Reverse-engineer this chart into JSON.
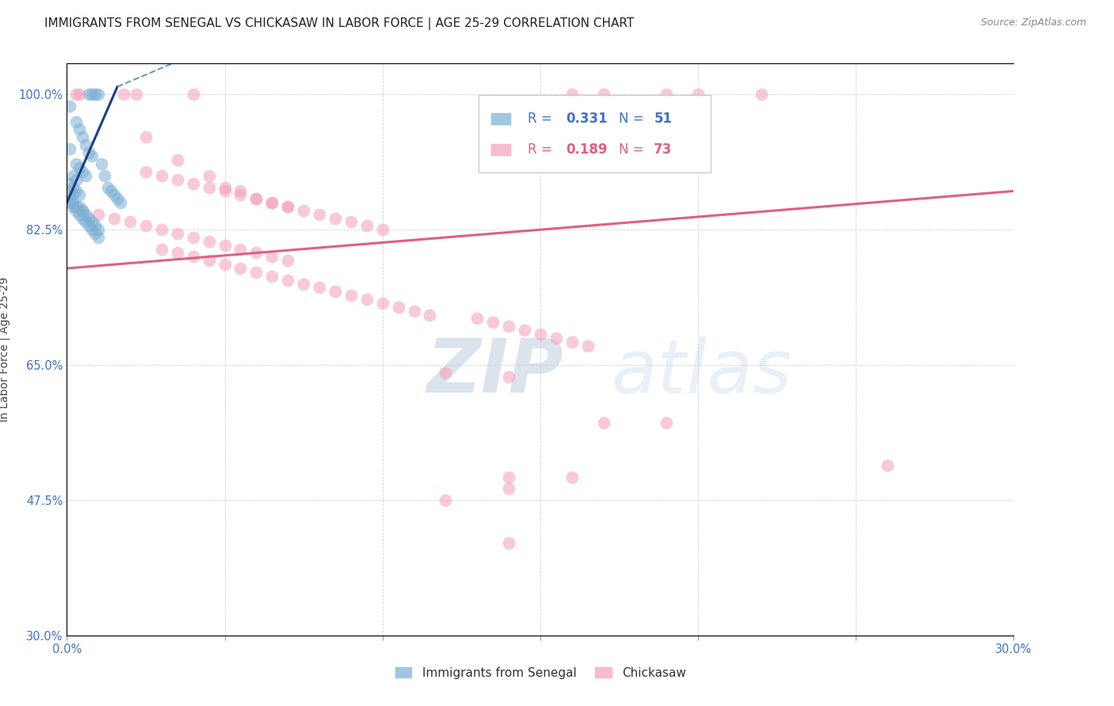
{
  "title": "IMMIGRANTS FROM SENEGAL VS CHICKASAW IN LABOR FORCE | AGE 25-29 CORRELATION CHART",
  "source": "Source: ZipAtlas.com",
  "ylabel": "In Labor Force | Age 25-29",
  "xlim": [
    0.0,
    0.3
  ],
  "ylim": [
    0.3,
    1.04
  ],
  "yticks": [
    0.3,
    0.475,
    0.65,
    0.825,
    1.0
  ],
  "ytick_labels": [
    "30.0%",
    "47.5%",
    "65.0%",
    "82.5%",
    "100.0%"
  ],
  "xticks": [
    0.0,
    0.05,
    0.1,
    0.15,
    0.2,
    0.25,
    0.3
  ],
  "xtick_labels": [
    "0.0%",
    "",
    "",
    "",
    "",
    "",
    "30.0%"
  ],
  "watermark_zip": "ZIP",
  "watermark_atlas": "atlas",
  "senegal_scatter": [
    [
      0.001,
      0.93
    ],
    [
      0.001,
      0.985
    ],
    [
      0.007,
      1.0
    ],
    [
      0.008,
      1.0
    ],
    [
      0.009,
      1.0
    ],
    [
      0.01,
      1.0
    ],
    [
      0.003,
      0.965
    ],
    [
      0.004,
      0.955
    ],
    [
      0.005,
      0.945
    ],
    [
      0.006,
      0.935
    ],
    [
      0.007,
      0.925
    ],
    [
      0.008,
      0.92
    ],
    [
      0.003,
      0.91
    ],
    [
      0.004,
      0.905
    ],
    [
      0.005,
      0.9
    ],
    [
      0.006,
      0.895
    ],
    [
      0.002,
      0.895
    ],
    [
      0.003,
      0.89
    ],
    [
      0.001,
      0.885
    ],
    [
      0.002,
      0.88
    ],
    [
      0.001,
      0.875
    ],
    [
      0.002,
      0.87
    ],
    [
      0.003,
      0.875
    ],
    [
      0.004,
      0.87
    ],
    [
      0.001,
      0.865
    ],
    [
      0.002,
      0.86
    ],
    [
      0.003,
      0.855
    ],
    [
      0.004,
      0.855
    ],
    [
      0.005,
      0.85
    ],
    [
      0.006,
      0.845
    ],
    [
      0.007,
      0.84
    ],
    [
      0.008,
      0.835
    ],
    [
      0.009,
      0.83
    ],
    [
      0.01,
      0.825
    ],
    [
      0.001,
      0.86
    ],
    [
      0.002,
      0.855
    ],
    [
      0.003,
      0.85
    ],
    [
      0.004,
      0.845
    ],
    [
      0.005,
      0.84
    ],
    [
      0.006,
      0.835
    ],
    [
      0.007,
      0.83
    ],
    [
      0.008,
      0.825
    ],
    [
      0.009,
      0.82
    ],
    [
      0.01,
      0.815
    ],
    [
      0.011,
      0.91
    ],
    [
      0.012,
      0.895
    ],
    [
      0.013,
      0.88
    ],
    [
      0.014,
      0.875
    ],
    [
      0.015,
      0.87
    ],
    [
      0.016,
      0.865
    ],
    [
      0.017,
      0.86
    ]
  ],
  "chickasaw_scatter": [
    [
      0.003,
      1.0
    ],
    [
      0.004,
      1.0
    ],
    [
      0.018,
      1.0
    ],
    [
      0.022,
      1.0
    ],
    [
      0.04,
      1.0
    ],
    [
      0.16,
      1.0
    ],
    [
      0.17,
      1.0
    ],
    [
      0.19,
      1.0
    ],
    [
      0.2,
      1.0
    ],
    [
      0.22,
      1.0
    ],
    [
      0.025,
      0.945
    ],
    [
      0.035,
      0.915
    ],
    [
      0.045,
      0.895
    ],
    [
      0.05,
      0.88
    ],
    [
      0.055,
      0.875
    ],
    [
      0.06,
      0.865
    ],
    [
      0.065,
      0.86
    ],
    [
      0.07,
      0.855
    ],
    [
      0.025,
      0.9
    ],
    [
      0.03,
      0.895
    ],
    [
      0.035,
      0.89
    ],
    [
      0.04,
      0.885
    ],
    [
      0.045,
      0.88
    ],
    [
      0.05,
      0.875
    ],
    [
      0.055,
      0.87
    ],
    [
      0.06,
      0.865
    ],
    [
      0.065,
      0.86
    ],
    [
      0.07,
      0.855
    ],
    [
      0.075,
      0.85
    ],
    [
      0.08,
      0.845
    ],
    [
      0.085,
      0.84
    ],
    [
      0.09,
      0.835
    ],
    [
      0.095,
      0.83
    ],
    [
      0.1,
      0.825
    ],
    [
      0.005,
      0.85
    ],
    [
      0.01,
      0.845
    ],
    [
      0.015,
      0.84
    ],
    [
      0.02,
      0.835
    ],
    [
      0.025,
      0.83
    ],
    [
      0.03,
      0.825
    ],
    [
      0.035,
      0.82
    ],
    [
      0.04,
      0.815
    ],
    [
      0.045,
      0.81
    ],
    [
      0.05,
      0.805
    ],
    [
      0.055,
      0.8
    ],
    [
      0.06,
      0.795
    ],
    [
      0.065,
      0.79
    ],
    [
      0.07,
      0.785
    ],
    [
      0.03,
      0.8
    ],
    [
      0.035,
      0.795
    ],
    [
      0.04,
      0.79
    ],
    [
      0.045,
      0.785
    ],
    [
      0.05,
      0.78
    ],
    [
      0.055,
      0.775
    ],
    [
      0.06,
      0.77
    ],
    [
      0.065,
      0.765
    ],
    [
      0.07,
      0.76
    ],
    [
      0.075,
      0.755
    ],
    [
      0.08,
      0.75
    ],
    [
      0.085,
      0.745
    ],
    [
      0.09,
      0.74
    ],
    [
      0.095,
      0.735
    ],
    [
      0.1,
      0.73
    ],
    [
      0.105,
      0.725
    ],
    [
      0.11,
      0.72
    ],
    [
      0.115,
      0.715
    ],
    [
      0.13,
      0.71
    ],
    [
      0.135,
      0.705
    ],
    [
      0.14,
      0.7
    ],
    [
      0.145,
      0.695
    ],
    [
      0.15,
      0.69
    ],
    [
      0.155,
      0.685
    ],
    [
      0.16,
      0.68
    ],
    [
      0.165,
      0.675
    ],
    [
      0.12,
      0.64
    ],
    [
      0.14,
      0.635
    ],
    [
      0.17,
      0.575
    ],
    [
      0.19,
      0.575
    ],
    [
      0.26,
      0.52
    ],
    [
      0.14,
      0.505
    ],
    [
      0.16,
      0.505
    ],
    [
      0.14,
      0.49
    ],
    [
      0.12,
      0.475
    ],
    [
      0.14,
      0.42
    ]
  ],
  "senegal_line_solid": {
    "x": [
      0.0,
      0.016
    ],
    "y": [
      0.86,
      1.01
    ]
  },
  "senegal_line_dashed": {
    "x": [
      0.016,
      0.3
    ],
    "y": [
      1.01,
      1.5
    ]
  },
  "chickasaw_line": {
    "x": [
      0.0,
      0.3
    ],
    "y": [
      0.775,
      0.875
    ]
  },
  "blue_scatter_color": "#7bafd4",
  "pink_scatter_color": "#f4a0b8",
  "blue_line_color": "#1a3f8a",
  "blue_dashed_color": "#6699cc",
  "pink_line_color": "#e06080",
  "background_color": "#ffffff",
  "grid_color": "#c8c8c8",
  "title_fontsize": 11,
  "tick_label_color": "#4472c4",
  "legend_blue_color": "#4472c4",
  "legend_pink_color": "#e06080",
  "legend_box_color": "#7bafd4",
  "legend_pink_box_color": "#f4a0b8"
}
